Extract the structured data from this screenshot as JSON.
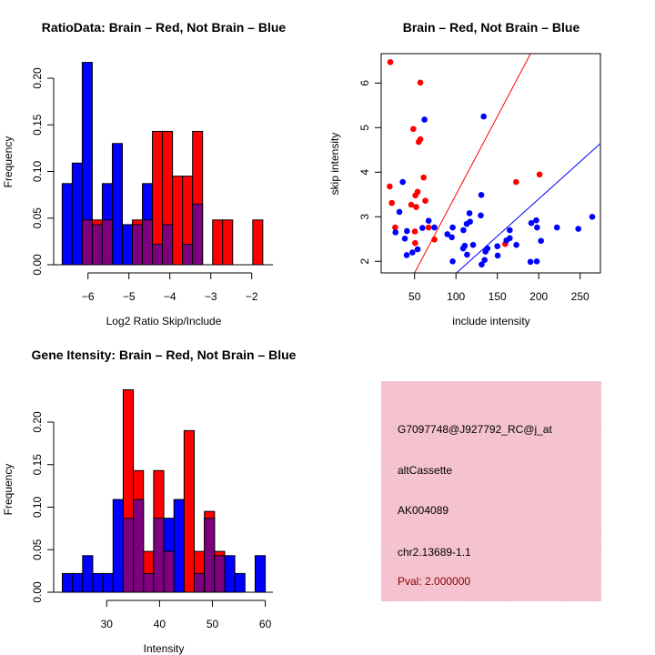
{
  "chart_data": [
    {
      "type": "bar",
      "title": "RatioData: Brain – Red, Not Brain – Blue",
      "xlabel": "Log2 Ratio Skip/Include",
      "ylabel": "Frequency",
      "xticks": [
        -6,
        -5,
        -4,
        -3,
        -2
      ],
      "yticks": [
        "0.00",
        "0.05",
        "0.10",
        "0.15",
        "0.20"
      ],
      "bin_start": -6.63,
      "bin_width": 0.245,
      "series": [
        {
          "name": "Not Brain",
          "color": "#0000ff",
          "values": [
            0.087,
            0.109,
            0.217,
            0.043,
            0.087,
            0.13,
            0.043,
            0.043,
            0.087,
            0.022,
            0.043,
            0,
            0.022,
            0.065,
            0,
            0,
            0,
            0,
            0,
            0
          ]
        },
        {
          "name": "Brain",
          "color": "#ff0000",
          "values": [
            0,
            0,
            0.048,
            0.048,
            0.048,
            0,
            0,
            0.048,
            0.048,
            0.143,
            0.143,
            0.095,
            0.095,
            0.143,
            0,
            0.048,
            0.048,
            0,
            0,
            0.048
          ]
        }
      ],
      "overlap_color": "#7f007f"
    },
    {
      "type": "scatter",
      "title": "Brain – Red, Not Brain – Blue",
      "xlabel": "include intensity",
      "ylabel": "skip intensity",
      "xticks": [
        50,
        100,
        150,
        200,
        250
      ],
      "yticks": [
        2,
        3,
        4,
        5,
        6
      ],
      "xlim": [
        10,
        274.5
      ],
      "ylim": [
        1.74,
        6.65
      ],
      "series": [
        {
          "name": "Brain",
          "color": "#ff0000",
          "points": [
            [
              20.7,
              6.47
            ],
            [
              57,
              6.01
            ],
            [
              48.5,
              4.97
            ],
            [
              55,
              4.68
            ],
            [
              57,
              4.74
            ],
            [
              61,
              3.88
            ],
            [
              20,
              3.68
            ],
            [
              22.5,
              3.31
            ],
            [
              53.7,
              3.56
            ],
            [
              51,
              3.48
            ],
            [
              63,
              3.36
            ],
            [
              46,
              3.27
            ],
            [
              52,
              3.22
            ],
            [
              26.6,
              2.76
            ],
            [
              50.4,
              2.67
            ],
            [
              67,
              2.76
            ],
            [
              50.7,
              2.41
            ],
            [
              74,
              2.49
            ],
            [
              159.5,
              2.39
            ],
            [
              172.7,
              3.78
            ],
            [
              201,
              3.95
            ]
          ]
        },
        {
          "name": "Not Brain",
          "color": "#0000ff",
          "points": [
            [
              62,
              5.18
            ],
            [
              133.5,
              5.25
            ],
            [
              35.7,
              3.78
            ],
            [
              31.7,
              3.11
            ],
            [
              27,
              2.65
            ],
            [
              40.8,
              2.68
            ],
            [
              38.3,
              2.51
            ],
            [
              40.5,
              2.14
            ],
            [
              47.4,
              2.2
            ],
            [
              53.7,
              2.27
            ],
            [
              67,
              2.91
            ],
            [
              59.5,
              2.75
            ],
            [
              74,
              2.76
            ],
            [
              89.6,
              2.61
            ],
            [
              95,
              2.54
            ],
            [
              96,
              2.76
            ],
            [
              96,
              2.0
            ],
            [
              109,
              2.7
            ],
            [
              108.7,
              2.29
            ],
            [
              110.6,
              2.35
            ],
            [
              113.4,
              2.15
            ],
            [
              116.3,
              3.08
            ],
            [
              117,
              2.89
            ],
            [
              113,
              2.84
            ],
            [
              120.7,
              2.37
            ],
            [
              130.6,
              3.49
            ],
            [
              130,
              3.03
            ],
            [
              131,
              1.93
            ],
            [
              134.6,
              2.03
            ],
            [
              135.7,
              2.22
            ],
            [
              138,
              2.29
            ],
            [
              150,
              2.34
            ],
            [
              150.4,
              2.13
            ],
            [
              161,
              2.47
            ],
            [
              165,
              2.52
            ],
            [
              165,
              2.7
            ],
            [
              173,
              2.37
            ],
            [
              191,
              2.86
            ],
            [
              197,
              2.92
            ],
            [
              198,
              2.76
            ],
            [
              190,
              1.99
            ],
            [
              197.6,
              2.0
            ],
            [
              202.7,
              2.46
            ],
            [
              222,
              2.76
            ],
            [
              247.8,
              2.73
            ],
            [
              264.6,
              3.0
            ]
          ]
        }
      ],
      "lines": [
        {
          "name": "Brain fit",
          "color": "#ff0000",
          "slope": 0.0351,
          "intercept": -0.015
        },
        {
          "name": "Not Brain fit",
          "color": "#0000ff",
          "slope": 0.0167,
          "intercept": 0.06
        }
      ]
    },
    {
      "type": "bar",
      "title": "Gene Itensity: Brain – Red, Not Brain – Blue",
      "xlabel": "Intensity",
      "ylabel": "Frequency",
      "xticks": [
        30,
        40,
        50,
        60
      ],
      "yticks": [
        "0.00",
        "0.05",
        "0.10",
        "0.15",
        "0.20"
      ],
      "bin_start": 21.6,
      "bin_width": 1.92,
      "series": [
        {
          "name": "Not Brain",
          "color": "#0000ff",
          "values": [
            0.022,
            0.022,
            0.043,
            0.022,
            0.022,
            0.109,
            0.087,
            0.109,
            0.022,
            0.087,
            0.087,
            0.109,
            0,
            0.022,
            0.087,
            0.043,
            0.043,
            0.022,
            0,
            0.043
          ]
        },
        {
          "name": "Brain",
          "color": "#ff0000",
          "values": [
            0,
            0,
            0,
            0,
            0,
            0,
            0.238,
            0.143,
            0.048,
            0.143,
            0.048,
            0,
            0.19,
            0.048,
            0.095,
            0.048,
            0,
            0,
            0,
            0
          ]
        }
      ],
      "overlap_color": "#7f007f"
    }
  ],
  "info": {
    "probe": "G7097748@J927792_RC@j_at",
    "event": "altCassette",
    "accession": "AK004089",
    "location": "chr2.13689-1.1",
    "pval": "Pval: 2.000000",
    "pval_color": "#8b0000"
  }
}
